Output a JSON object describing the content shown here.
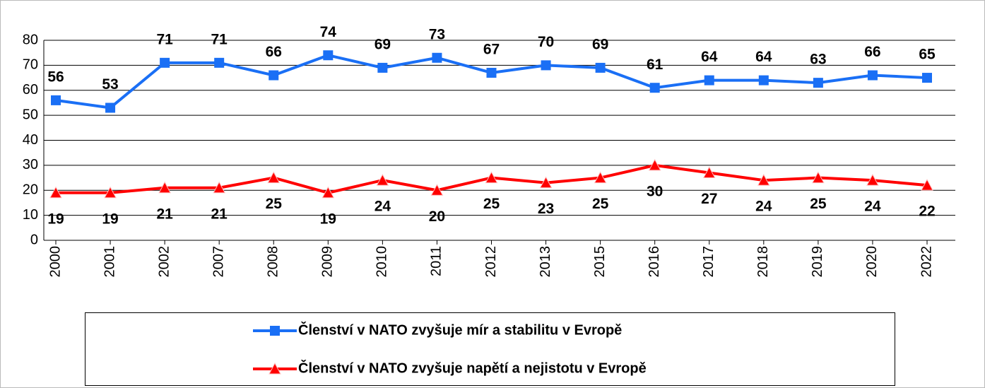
{
  "chart_data": {
    "type": "line",
    "categories": [
      "2000",
      "2001",
      "2002",
      "2007",
      "2008",
      "2009",
      "2010",
      "2011",
      "2012",
      "2013",
      "2015",
      "2016",
      "2017",
      "2018",
      "2019",
      "2020",
      "2022"
    ],
    "series": [
      {
        "name": "Členství v NATO zvyšuje mír a stabilitu v Evropě",
        "color": "#1a6ff5",
        "marker": "square",
        "values": [
          56,
          53,
          71,
          71,
          66,
          74,
          69,
          73,
          67,
          70,
          69,
          61,
          64,
          64,
          63,
          66,
          65
        ]
      },
      {
        "name": "Členství v NATO zvyšuje napětí a nejistotu v Evropě",
        "color": "#ff0000",
        "marker": "triangle",
        "values": [
          19,
          19,
          21,
          21,
          25,
          19,
          24,
          20,
          25,
          23,
          25,
          30,
          27,
          24,
          25,
          24,
          22
        ]
      }
    ],
    "ylim": [
      0,
      80
    ],
    "yticks": [
      0,
      10,
      20,
      30,
      40,
      50,
      60,
      70,
      80
    ],
    "grid": true,
    "legend": "bottom"
  }
}
